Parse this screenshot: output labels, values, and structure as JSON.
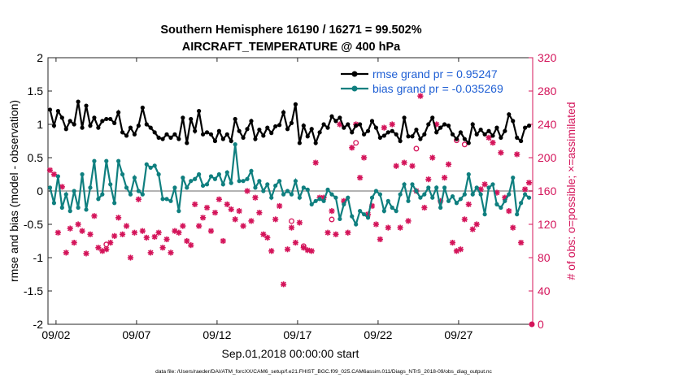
{
  "chart_data": {
    "type": "line",
    "title_line1": "Southern Hemisphere 16190 / 16271 = 99.502%",
    "title_line2": "AIRCRAFT_TEMPERATURE @ 400 hPa",
    "xlabel": "Sep.01,2018 00:00:00 start",
    "ylabel_left": "rmse and bias (model - observation)",
    "ylabel_right": "# of obs: o=possible; ×=assimilated",
    "footnote": "data file: /Users/raeder/DAI/ATM_forcXX/CAM6_setup/f.e21.FHIST_BGC.f09_025.CAM6assim.011/Diags_NTrS_2018-09/obs_diag_output.nc",
    "xlim": [
      1.5,
      31.6
    ],
    "ylim_left": [
      -2,
      2
    ],
    "ylim_right": [
      0,
      320
    ],
    "x_ticks": [
      2,
      7,
      12,
      17,
      22,
      27
    ],
    "x_tick_labels": [
      "09/02",
      "09/07",
      "09/12",
      "09/17",
      "09/22",
      "09/27"
    ],
    "left_ticks": [
      -2,
      -1.5,
      -1,
      -0.5,
      0,
      0.5,
      1,
      1.5,
      2
    ],
    "left_tick_labels": [
      "-2",
      "-1.5",
      "-1",
      "-0.5",
      "0",
      "0.5",
      "1",
      "1.5",
      "2"
    ],
    "right_ticks": [
      0,
      40,
      80,
      120,
      160,
      200,
      240,
      280,
      320
    ],
    "right_tick_labels": [
      "0",
      "40",
      "80",
      "120",
      "160",
      "200",
      "240",
      "280",
      "320"
    ],
    "colors": {
      "rmse": "#000000",
      "bias": "#0f7f7f",
      "obs": "#d4145a",
      "zero_line": "#b3b3b3",
      "legend_text": "#1f5fd4"
    },
    "legend": [
      {
        "name": "rmse grand pr = 0.95247"
      },
      {
        "name": "bias grand pr = -0.035269"
      }
    ],
    "series": [
      {
        "name": "rmse",
        "x": [
          1.625,
          1.875,
          2.125,
          2.375,
          2.625,
          2.875,
          3.125,
          3.375,
          3.625,
          3.875,
          4.125,
          4.375,
          4.625,
          4.875,
          5.125,
          5.375,
          5.625,
          5.875,
          6.125,
          6.375,
          6.625,
          6.875,
          7.125,
          7.375,
          7.625,
          7.875,
          8.125,
          8.375,
          8.625,
          8.875,
          9.125,
          9.375,
          9.625,
          9.875,
          10.125,
          10.375,
          10.625,
          10.875,
          11.125,
          11.375,
          11.625,
          11.875,
          12.125,
          12.375,
          12.625,
          12.875,
          13.125,
          13.375,
          13.625,
          13.875,
          14.125,
          14.375,
          14.625,
          14.875,
          15.125,
          15.375,
          15.625,
          15.875,
          16.125,
          16.375,
          16.625,
          16.875,
          17.125,
          17.375,
          17.625,
          17.875,
          18.125,
          18.375,
          18.625,
          18.875,
          19.125,
          19.375,
          19.625,
          19.875,
          20.125,
          20.375,
          20.625,
          20.875,
          21.125,
          21.375,
          21.625,
          21.875,
          22.125,
          22.375,
          22.625,
          22.875,
          23.125,
          23.375,
          23.625,
          23.875,
          24.125,
          24.375,
          24.625,
          24.875,
          25.125,
          25.375,
          25.625,
          25.875,
          26.125,
          26.375,
          26.625,
          26.875,
          27.125,
          27.375,
          27.625,
          27.875,
          28.125,
          28.375,
          28.625,
          28.875,
          29.125,
          29.375,
          29.625,
          29.875,
          30.125,
          30.375,
          30.625,
          30.875,
          31.125,
          31.375
        ],
        "y": [
          1.22,
          0.98,
          1.2,
          1.1,
          0.93,
          1.05,
          1.0,
          1.34,
          0.95,
          1.28,
          0.98,
          1.1,
          0.95,
          1.05,
          1.08,
          1.08,
          1.02,
          1.18,
          0.88,
          0.83,
          0.95,
          0.85,
          0.98,
          1.25,
          1.0,
          0.95,
          0.88,
          0.8,
          0.78,
          0.85,
          0.8,
          0.85,
          0.78,
          1.1,
          0.72,
          1.08,
          0.9,
          1.2,
          0.85,
          0.88,
          0.85,
          0.75,
          0.9,
          0.78,
          0.85,
          0.75,
          1.08,
          0.9,
          0.8,
          0.93,
          1.05,
          0.78,
          0.92,
          0.83,
          0.95,
          0.87,
          0.97,
          0.99,
          1.18,
          0.93,
          1.02,
          1.3,
          0.72,
          0.98,
          0.82,
          0.93,
          0.72,
          0.88,
          1.0,
          0.95,
          1.12,
          1.05,
          1.1,
          0.95,
          1.0,
          0.88,
          0.98,
          1.0,
          0.85,
          0.9,
          1.05,
          0.95,
          0.8,
          0.83,
          0.88,
          0.9,
          0.85,
          0.75,
          1.1,
          0.82,
          0.82,
          0.92,
          0.78,
          0.85,
          1.0,
          1.1,
          0.88,
          0.95,
          1.0,
          0.98,
          0.85,
          0.78,
          0.88,
          0.78,
          0.72,
          1.0,
          0.85,
          0.92,
          0.85,
          0.9,
          0.83,
          0.95,
          0.8,
          0.9,
          1.15,
          1.05,
          0.8,
          0.75,
          0.95,
          0.98
        ]
      },
      {
        "name": "bias",
        "x": [
          1.625,
          1.875,
          2.125,
          2.375,
          2.625,
          2.875,
          3.125,
          3.375,
          3.625,
          3.875,
          4.125,
          4.375,
          4.625,
          4.875,
          5.125,
          5.375,
          5.625,
          5.875,
          6.125,
          6.375,
          6.625,
          6.875,
          7.125,
          7.375,
          7.625,
          7.875,
          8.125,
          8.375,
          8.625,
          8.875,
          9.125,
          9.375,
          9.625,
          9.875,
          10.125,
          10.375,
          10.625,
          10.875,
          11.125,
          11.375,
          11.625,
          11.875,
          12.125,
          12.375,
          12.625,
          12.875,
          13.125,
          13.375,
          13.625,
          13.875,
          14.125,
          14.375,
          14.625,
          14.875,
          15.125,
          15.375,
          15.625,
          15.875,
          16.125,
          16.375,
          16.625,
          16.875,
          17.125,
          17.375,
          17.625,
          17.875,
          18.125,
          18.375,
          18.625,
          18.875,
          19.125,
          19.375,
          19.625,
          19.875,
          20.125,
          20.375,
          20.625,
          20.875,
          21.125,
          21.375,
          21.625,
          21.875,
          22.125,
          22.375,
          22.625,
          22.875,
          23.125,
          23.375,
          23.625,
          23.875,
          24.125,
          24.375,
          24.625,
          24.875,
          25.125,
          25.375,
          25.625,
          25.875,
          26.125,
          26.375,
          26.625,
          26.875,
          27.125,
          27.375,
          27.625,
          27.875,
          28.125,
          28.375,
          28.625,
          28.875,
          29.125,
          29.375,
          29.625,
          29.875,
          30.125,
          30.375,
          30.625,
          30.875,
          31.125,
          31.375
        ],
        "y": [
          0.05,
          -0.18,
          0.22,
          -0.25,
          -0.05,
          -0.3,
          0.0,
          -0.25,
          0.25,
          -0.28,
          0.05,
          0.45,
          -0.12,
          -0.05,
          0.45,
          0.1,
          -0.18,
          0.45,
          0.25,
          0.05,
          -0.05,
          0.2,
          0.0,
          -0.05,
          0.4,
          0.35,
          0.38,
          0.25,
          -0.12,
          -0.12,
          -0.15,
          0.05,
          -0.3,
          0.2,
          0.05,
          0.15,
          0.18,
          0.25,
          0.08,
          0.1,
          0.22,
          0.18,
          0.25,
          0.1,
          0.28,
          0.12,
          0.7,
          0.15,
          0.15,
          0.18,
          0.3,
          0.05,
          0.15,
          0.0,
          0.1,
          -0.1,
          0.08,
          0.15,
          -0.05,
          0.0,
          -0.05,
          0.15,
          -0.1,
          0.05,
          0.02,
          -0.2,
          -0.15,
          -0.12,
          -0.15,
          0.02,
          -0.05,
          -0.1,
          -0.42,
          -0.2,
          -0.1,
          -0.38,
          -0.5,
          -0.3,
          -0.35,
          -0.4,
          -0.1,
          0.0,
          -0.05,
          -0.3,
          -0.15,
          -0.25,
          -0.3,
          -0.05,
          0.1,
          -0.15,
          0.1,
          0.0,
          -0.1,
          -0.05,
          0.05,
          -0.1,
          0.05,
          -0.25,
          0.05,
          -0.15,
          -0.08,
          -0.18,
          -0.12,
          -0.05,
          0.25,
          -0.05,
          0.05,
          -0.05,
          -0.35,
          0.05,
          0.1,
          -0.2,
          -0.25,
          -0.15,
          -0.05,
          0.2,
          -0.35,
          -0.18,
          -0.05,
          -0.1
        ]
      }
    ],
    "obs_assimilated": {
      "x": [
        1.625,
        1.875,
        2.125,
        2.375,
        2.625,
        2.875,
        3.125,
        3.375,
        3.625,
        3.875,
        4.125,
        4.375,
        4.625,
        4.875,
        5.125,
        5.375,
        5.625,
        5.875,
        6.125,
        6.375,
        6.625,
        6.875,
        7.125,
        7.375,
        7.625,
        7.875,
        8.125,
        8.375,
        8.625,
        8.875,
        9.125,
        9.375,
        9.625,
        9.875,
        10.125,
        10.375,
        10.625,
        10.875,
        11.125,
        11.375,
        11.625,
        11.875,
        12.125,
        12.375,
        12.625,
        12.875,
        13.125,
        13.375,
        13.625,
        13.875,
        14.125,
        14.375,
        14.625,
        14.875,
        15.125,
        15.375,
        15.625,
        15.875,
        16.125,
        16.375,
        16.625,
        16.875,
        17.125,
        17.375,
        17.625,
        17.875,
        18.125,
        18.375,
        18.625,
        18.875,
        19.125,
        19.375,
        19.625,
        19.875,
        20.125,
        20.375,
        20.625,
        20.875,
        21.125,
        21.375,
        21.625,
        21.875,
        22.125,
        22.375,
        22.625,
        22.875,
        23.125,
        23.375,
        23.625,
        23.875,
        24.125,
        24.375,
        24.625,
        24.875,
        25.125,
        25.375,
        25.625,
        25.875,
        26.125,
        26.375,
        26.625,
        26.875,
        27.125,
        27.375,
        27.625,
        27.875,
        28.125,
        28.375,
        28.625,
        28.875,
        29.125,
        29.375,
        29.625,
        29.875,
        30.125,
        30.375,
        30.625,
        30.875,
        31.125,
        31.375
      ],
      "y": [
        185,
        180,
        110,
        165,
        86,
        115,
        98,
        120,
        112,
        85,
        108,
        130,
        92,
        88,
        90,
        98,
        106,
        128,
        108,
        118,
        80,
        110,
        150,
        112,
        104,
        86,
        105,
        110,
        92,
        102,
        86,
        112,
        110,
        118,
        100,
        95,
        144,
        118,
        128,
        140,
        112,
        134,
        150,
        100,
        144,
        138,
        126,
        136,
        118,
        160,
        124,
        152,
        134,
        108,
        104,
        88,
        126,
        142,
        48,
        90,
        116,
        98,
        122,
        92,
        89,
        88,
        194,
        152,
        152,
        110,
        136,
        108,
        240,
        148,
        110,
        212,
        240,
        176,
        200,
        132,
        142,
        120,
        102,
        236,
        116,
        240,
        190,
        116,
        194,
        124,
        190,
        160,
        274,
        140,
        174,
        200,
        240,
        148,
        176,
        192,
        98,
        88,
        90,
        126,
        144,
        114,
        120,
        162,
        168,
        224,
        218,
        158,
        206,
        152,
        136,
        116,
        204,
        98,
        162,
        170
      ]
    },
    "obs_possible": {
      "x": [
        5.125,
        16.625,
        17.375,
        19.125,
        20.625,
        24.375,
        26.875,
        27.375
      ],
      "y": [
        90,
        118,
        88,
        120,
        212,
        205,
        215,
        210
      ]
    },
    "extra_marker": {
      "x": 31.55,
      "y": 0
    }
  }
}
